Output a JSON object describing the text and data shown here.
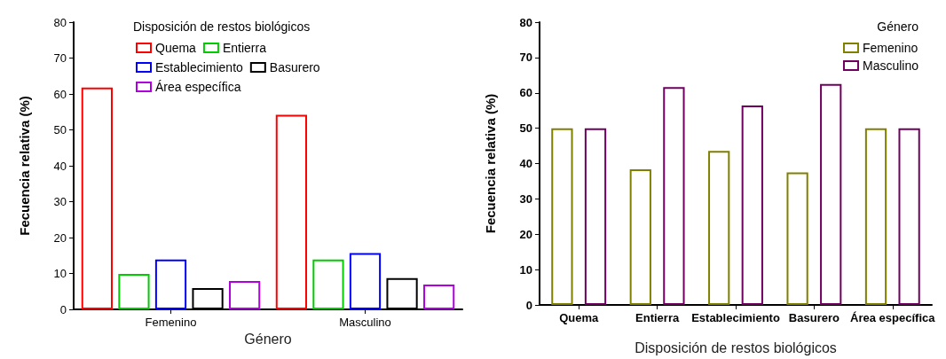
{
  "chart_data": [
    {
      "type": "bar",
      "xlabel": "Género",
      "ylabel": "Fecuencia relativa (%)",
      "legend_title": "Disposición de restos biológicos",
      "categories": [
        "Femenino",
        "Masculino"
      ],
      "series": [
        {
          "name": "Quema",
          "color": "#ff0000",
          "values": [
            61.8,
            54.2
          ]
        },
        {
          "name": "Entierra",
          "color": "#00cc00",
          "values": [
            9.9,
            13.9
          ]
        },
        {
          "name": "Establecimiento",
          "color": "#0000ff",
          "values": [
            13.9,
            15.7
          ]
        },
        {
          "name": "Basurero",
          "color": "#000000",
          "values": [
            5.9,
            8.7
          ]
        },
        {
          "name": "Área específica",
          "color": "#b000e0",
          "values": [
            7.9,
            6.9
          ]
        }
      ],
      "ylim": [
        0,
        80
      ],
      "yticks": [
        0,
        10,
        20,
        30,
        40,
        50,
        60,
        70,
        80
      ],
      "grid": false,
      "legend": "top left"
    },
    {
      "type": "bar",
      "xlabel": "Disposición de restos biológicos",
      "ylabel": "Fecuencia relativa (%)",
      "legend_title": "Género",
      "categories": [
        "Quema",
        "Entierra",
        "Establecimiento",
        "Basurero",
        "Área específica"
      ],
      "series": [
        {
          "name": "Femenino",
          "color": "#808000",
          "values": [
            50,
            38.4,
            43.6,
            37.5,
            50
          ]
        },
        {
          "name": "Masculino",
          "color": "#700060",
          "values": [
            50,
            61.6,
            56.4,
            62.5,
            50
          ]
        }
      ],
      "ylim": [
        0,
        80
      ],
      "yticks": [
        0,
        10,
        20,
        30,
        40,
        50,
        60,
        70,
        80
      ],
      "grid": false,
      "legend": "top right"
    }
  ]
}
